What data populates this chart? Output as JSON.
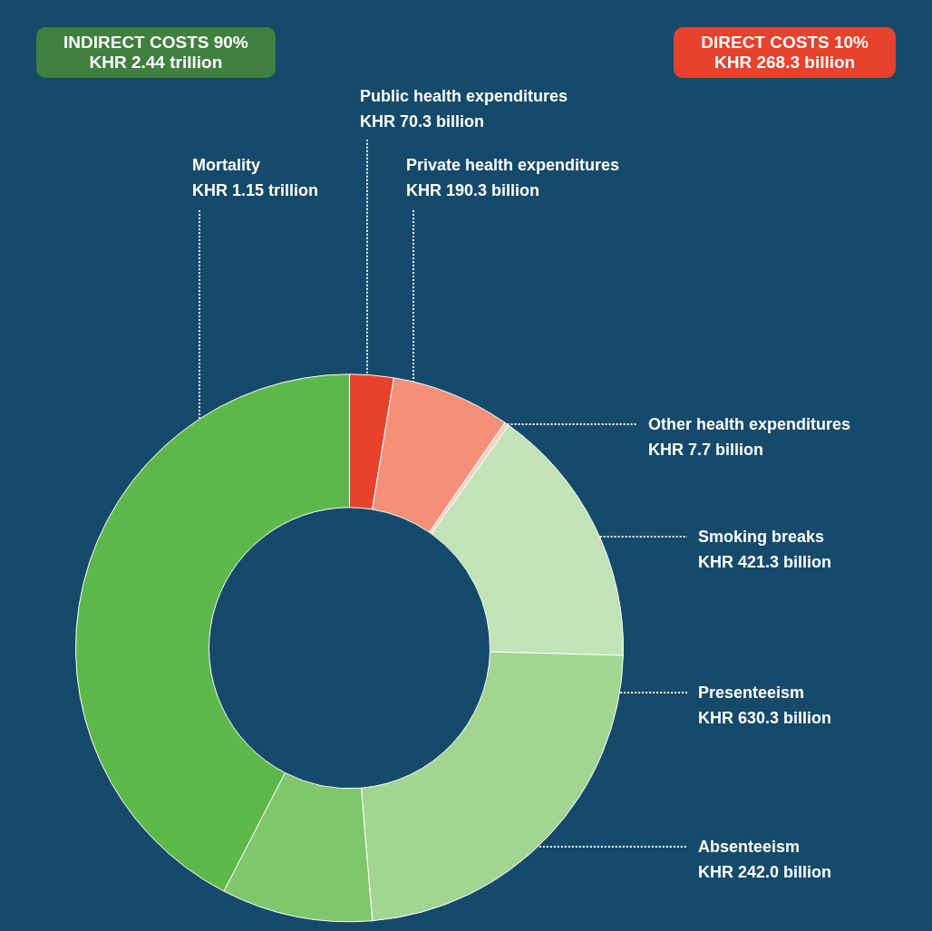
{
  "chart_data": {
    "type": "donut",
    "categories": [
      "Public health expenditures",
      "Private health expenditures",
      "Other health expenditures",
      "Smoking breaks",
      "Presenteeism",
      "Absenteeism",
      "Mortality"
    ],
    "values": [
      2.59,
      7.02,
      0.28,
      15.54,
      23.24,
      8.92,
      42.41
    ],
    "value_labels": [
      "KHR 70.3 billion",
      "KHR 190.3 billion",
      "KHR 7.7 billion",
      "KHR 421.3 billion",
      "KHR 630.3 billion",
      "KHR 242.0 billion",
      "KHR 1.15 trillion"
    ],
    "colors": [
      "#e8412c",
      "#f4907a",
      "#f9cfc4",
      "#c1e3b6",
      "#a2d592",
      "#7fc66c",
      "#5db84a"
    ],
    "annotations": [
      "INDIRECT COSTS 90%\nKHR 2.44 trillion",
      "DIRECT COSTS 10%\nKHR 268.3 billion"
    ],
    "legend": false
  }
}
